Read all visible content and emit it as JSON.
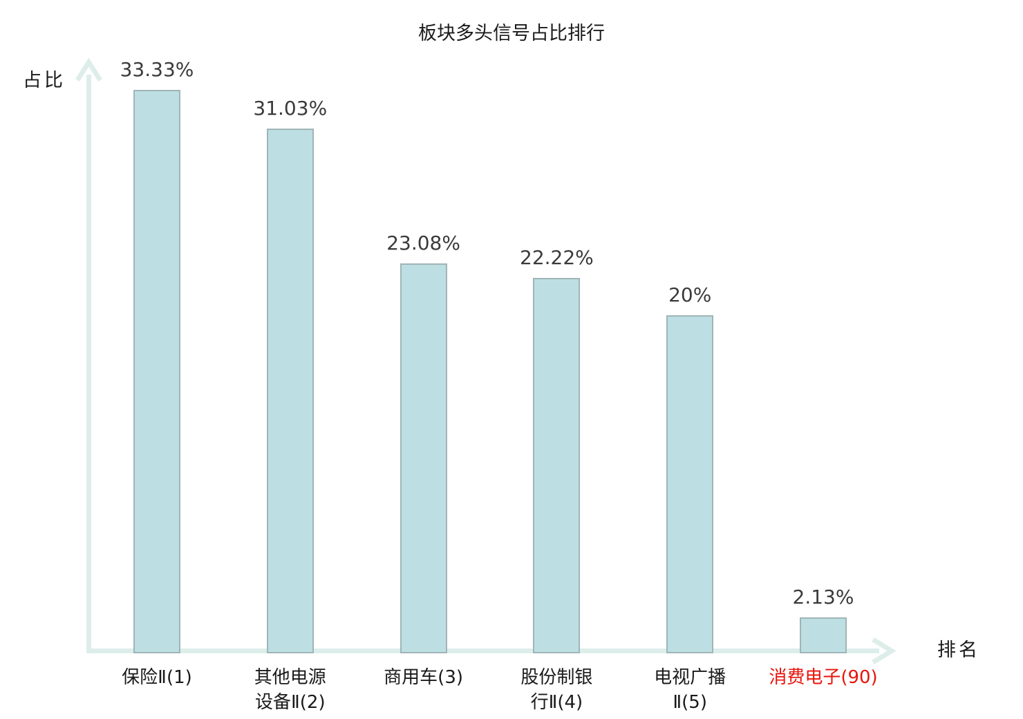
{
  "chart_data": {
    "type": "bar",
    "title": "板块多头信号占比排行",
    "xlabel": "排名",
    "ylabel": "占比",
    "categories": [
      "保险Ⅱ(1)",
      "其他电源设备Ⅱ(2)",
      "商用车(3)",
      "股份制银行Ⅱ(4)",
      "电视广播Ⅱ(5)",
      "消费电子(90)"
    ],
    "category_lines": [
      [
        "保险Ⅱ(1)"
      ],
      [
        "其他电源",
        "设备Ⅱ(2)"
      ],
      [
        "商用车(3)"
      ],
      [
        "股份制银",
        "行Ⅱ(4)"
      ],
      [
        "电视广播",
        "Ⅱ(5)"
      ],
      [
        "消费电子(90)"
      ]
    ],
    "values": [
      33.33,
      31.03,
      23.08,
      22.22,
      20,
      2.13
    ],
    "value_labels": [
      "33.33%",
      "31.03%",
      "23.08%",
      "22.22%",
      "20%",
      "2.13%"
    ],
    "highlight_index": 5,
    "ylim": [
      0,
      34.5
    ],
    "grid": false,
    "legend": "none",
    "colors": {
      "bar_fill": "#bddfe3",
      "bar_border": "#a0b4b6",
      "axis": "#ddeeea",
      "value_label": "#3a3a3a",
      "category_label": "#1a1a1a",
      "highlight": "#e8140c"
    }
  }
}
